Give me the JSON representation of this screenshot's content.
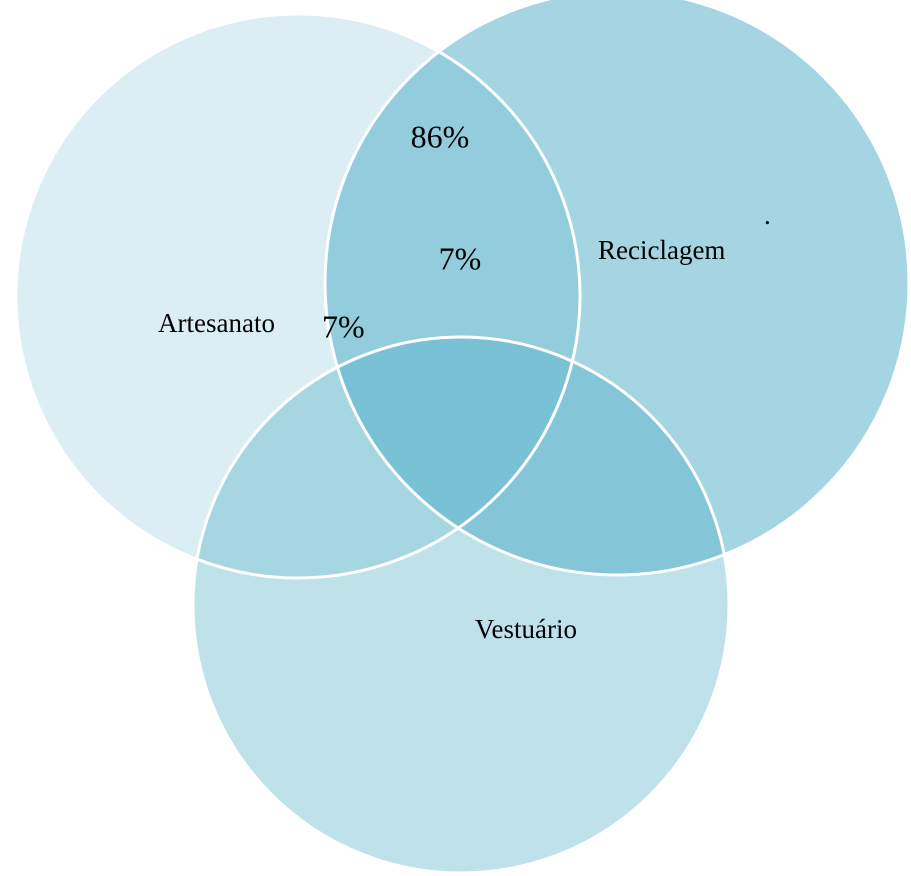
{
  "sets": [
    {
      "label": "Artesanato"
    },
    {
      "label": "Reciclagem"
    },
    {
      "label": "Vestuário"
    }
  ],
  "annotations": [
    {
      "text": "86%"
    },
    {
      "text": "7%"
    },
    {
      "text": "7%"
    },
    {
      "text": "."
    }
  ]
}
